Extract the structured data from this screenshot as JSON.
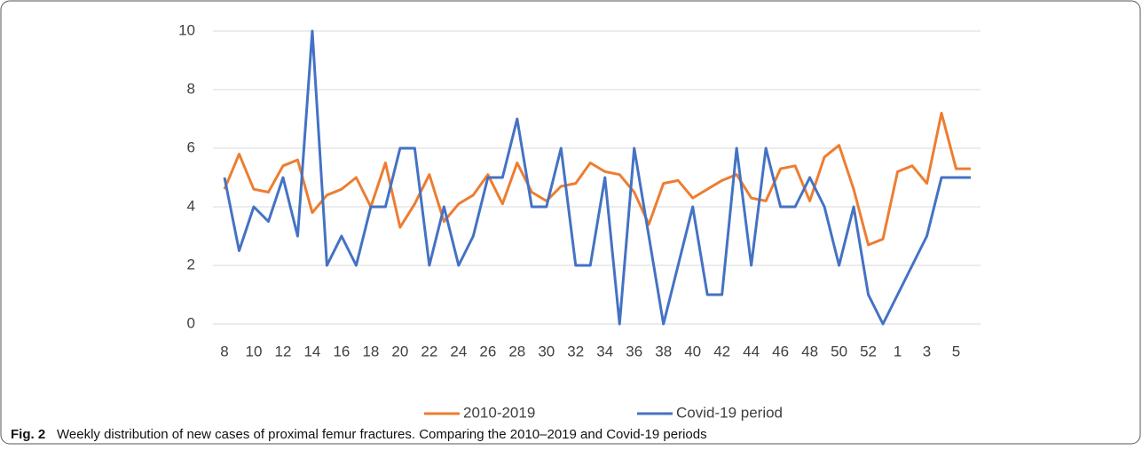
{
  "chart_data": {
    "type": "line",
    "categories": [
      "8",
      null,
      "10",
      null,
      "12",
      null,
      "14",
      null,
      "16",
      null,
      "18",
      null,
      "20",
      null,
      "22",
      null,
      "24",
      null,
      "26",
      null,
      "28",
      null,
      "30",
      null,
      "32",
      null,
      "34",
      null,
      "36",
      null,
      "38",
      null,
      "40",
      null,
      "42",
      null,
      "44",
      null,
      "46",
      null,
      "48",
      null,
      "50",
      null,
      "52",
      null,
      "1",
      null,
      "3",
      null,
      "5",
      null
    ],
    "series": [
      {
        "name": "2010-2019",
        "color": "#ed7d31",
        "values": [
          4.6,
          5.8,
          4.6,
          4.5,
          5.4,
          5.6,
          3.8,
          4.4,
          4.6,
          5.0,
          4.0,
          5.5,
          3.3,
          4.1,
          5.1,
          3.5,
          4.1,
          4.4,
          5.1,
          4.1,
          5.5,
          4.5,
          4.2,
          4.7,
          4.8,
          5.5,
          5.2,
          5.1,
          4.5,
          3.4,
          4.8,
          4.9,
          4.3,
          4.6,
          4.9,
          5.1,
          4.3,
          4.2,
          5.3,
          5.4,
          4.2,
          5.7,
          6.1,
          4.6,
          2.7,
          2.9,
          5.2,
          5.4,
          4.8,
          7.2,
          5.3,
          5.3
        ]
      },
      {
        "name": "Covid-19 period",
        "color": "#4472c4",
        "values": [
          5,
          2.5,
          4,
          3.5,
          5,
          3,
          10,
          2,
          3,
          2,
          4,
          4,
          6,
          6,
          2,
          4,
          2,
          3,
          5,
          5,
          7,
          4,
          4,
          6,
          2,
          2,
          5,
          0,
          6,
          3,
          0,
          2,
          4,
          1,
          1,
          6,
          2,
          6,
          4,
          4,
          5,
          4,
          2,
          4,
          1,
          0,
          1,
          2,
          3,
          5,
          5,
          5
        ]
      }
    ],
    "ylim": [
      0,
      10
    ],
    "yticks": [
      0,
      2,
      4,
      6,
      8,
      10
    ],
    "grid": true,
    "legend": "bottom",
    "caption_label": "Fig. 2",
    "caption": "Weekly distribution of new cases of proximal femur fractures. Comparing the 2010–2019 and Covid-19 periods"
  }
}
